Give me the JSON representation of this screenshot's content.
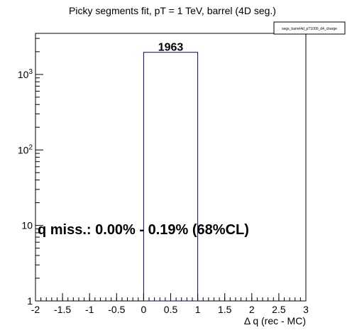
{
  "chart_data": {
    "type": "bar",
    "title": "Picky segments fit, pT = 1 TeV, barrel (4D seg.)",
    "legend_box": "segs_barrel4d_pT1000_d4_charge",
    "xlabel": "Δ q (rec - MC)",
    "ylabel": "",
    "xlim": [
      -2,
      3
    ],
    "ylim": [
      1,
      3500
    ],
    "yscale": "log",
    "x_ticks": [
      "-2",
      "-1.5",
      "-1",
      "-0.5",
      "0",
      "0.5",
      "1",
      "1.5",
      "2",
      "2.5",
      "3"
    ],
    "y_ticks": [
      {
        "base": "1",
        "exp": ""
      },
      {
        "base": "10",
        "exp": ""
      },
      {
        "base": "10",
        "exp": "2"
      },
      {
        "base": "10",
        "exp": "3"
      }
    ],
    "bins": [
      {
        "x0": 0,
        "x1": 1,
        "value": 1963,
        "label": "1963"
      }
    ],
    "annotation": "q miss.: 0.00% - 0.19% (68%CL)",
    "bar_color": "#000080"
  }
}
